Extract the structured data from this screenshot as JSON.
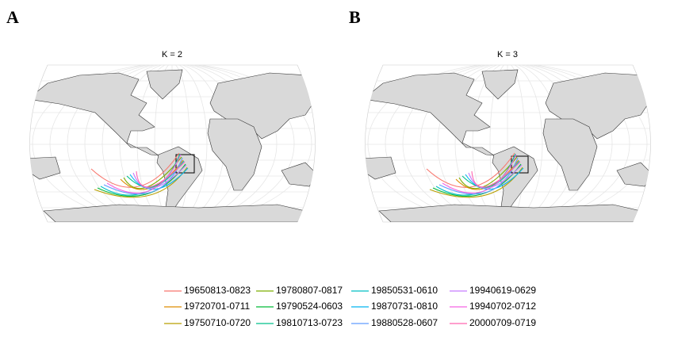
{
  "panels": [
    {
      "label": "A",
      "title": "K = 2"
    },
    {
      "label": "B",
      "title": "K = 3"
    }
  ],
  "legend": [
    {
      "name": "19650813-0823",
      "color": "#f8766d"
    },
    {
      "name": "19720701-0711",
      "color": "#de8c00"
    },
    {
      "name": "19750710-0720",
      "color": "#b79f00"
    },
    {
      "name": "19780807-0817",
      "color": "#7cae00"
    },
    {
      "name": "19790524-0603",
      "color": "#00ba38"
    },
    {
      "name": "19810713-0723",
      "color": "#00c08b"
    },
    {
      "name": "19850531-0610",
      "color": "#00bfc4"
    },
    {
      "name": "19870731-0810",
      "color": "#00b4f0"
    },
    {
      "name": "19880528-0607",
      "color": "#619cff"
    },
    {
      "name": "19940619-0629",
      "color": "#c77cff"
    },
    {
      "name": "19940702-0712",
      "color": "#f564e3"
    },
    {
      "name": "20000709-0719",
      "color": "#ff64b0"
    }
  ]
}
